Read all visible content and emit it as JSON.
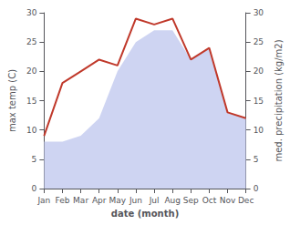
{
  "chart_data": {
    "type": "line",
    "xlabel": "date (month)",
    "ylabel": "max temp (C)",
    "y2label": "med. precipitation (kg/m2)",
    "categories": [
      "Jan",
      "Feb",
      "Mar",
      "Apr",
      "May",
      "Jun",
      "Jul",
      "Aug",
      "Sep",
      "Oct",
      "Nov",
      "Dec"
    ],
    "series": [
      {
        "type": "area",
        "color": "#c5cdf0",
        "axis": "y2",
        "values": [
          8,
          8,
          9,
          12,
          20,
          25,
          27,
          27,
          22,
          24,
          13,
          12
        ]
      },
      {
        "type": "line",
        "color": "#c0392b",
        "values": [
          9,
          18,
          20,
          22,
          21,
          29,
          28,
          29,
          22,
          24,
          13,
          12
        ]
      }
    ],
    "ylim": [
      0,
      30
    ],
    "yticks": [
      0,
      5,
      10,
      15,
      20,
      25,
      30
    ],
    "y2lim": [
      0,
      30
    ],
    "y2ticks": [
      0,
      5,
      10,
      15,
      20,
      25,
      30
    ],
    "grid": false
  }
}
